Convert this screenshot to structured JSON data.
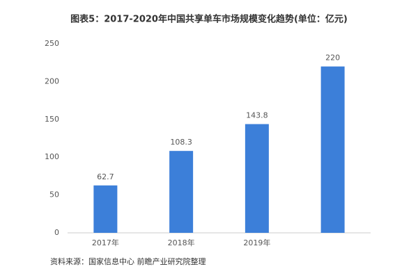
{
  "chart_data": {
    "type": "bar",
    "title": "图表5：2017-2020年中国共享单车市场规模变化趋势(单位：亿元)",
    "categories": [
      "2017年",
      "2018年",
      "2019年",
      null
    ],
    "values": [
      62.7,
      108.3,
      143.8,
      220
    ],
    "color": "#3c7fd9",
    "ylim": [
      0,
      250
    ],
    "yticks": [
      0,
      50,
      100,
      150,
      200,
      250
    ],
    "grid": false,
    "source": "资料来源：国家信息中心 前瞻产业研究院整理"
  }
}
